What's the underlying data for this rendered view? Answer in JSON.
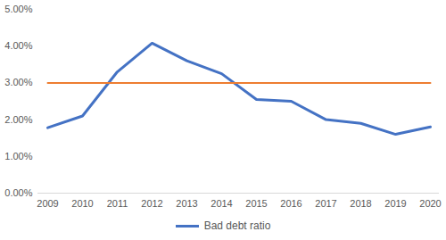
{
  "chart_data": {
    "type": "line",
    "categories": [
      "2009",
      "2010",
      "2011",
      "2012",
      "2013",
      "2014",
      "2015",
      "2016",
      "2017",
      "2018",
      "2019",
      "2020"
    ],
    "series": [
      {
        "name": "Bad debt ratio",
        "color": "#4472c4",
        "values": [
          1.78,
          2.1,
          3.3,
          4.08,
          3.6,
          3.25,
          2.55,
          2.5,
          2.0,
          1.9,
          1.6,
          1.8
        ]
      },
      {
        "color": "#ed7d31",
        "values": [
          3,
          3,
          3,
          3,
          3,
          3,
          3,
          3,
          3,
          3,
          3,
          3
        ]
      }
    ],
    "ylim": [
      0,
      5
    ],
    "yticks": [
      {
        "value": 0,
        "label": "0.00%"
      },
      {
        "value": 1,
        "label": "1.00%"
      },
      {
        "value": 2,
        "label": "2.00%"
      },
      {
        "value": 3,
        "label": "3.00%"
      },
      {
        "value": 4,
        "label": "4.00%"
      },
      {
        "value": 5,
        "label": "5.00%"
      }
    ],
    "grid": false,
    "legend": "bottom"
  }
}
